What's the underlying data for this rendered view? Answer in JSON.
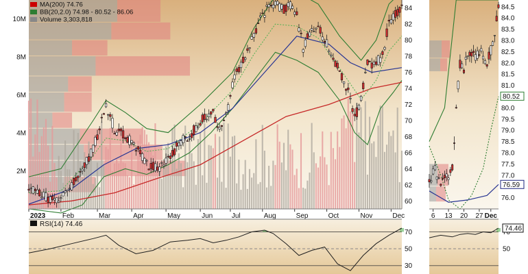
{
  "chart_data": [
    {
      "type": "candlestick",
      "panel": "main-daily",
      "legend": [
        {
          "label": "MA(200) 74.76",
          "color": "#cc0000"
        },
        {
          "label": "BB(20,2.0) 74.98 - 80.52 - 86.06",
          "color": "#2e7d32"
        },
        {
          "label": "Volume 3,303,818",
          "color": "#888888"
        }
      ],
      "price_ticks": [
        "84",
        "82",
        "80",
        "78",
        "76",
        "74",
        "72",
        "70",
        "68",
        "66",
        "64",
        "62",
        "60"
      ],
      "volume_ticks": [
        "10M",
        "8M",
        "6M",
        "4M",
        "2M"
      ],
      "x_ticks": [
        "2023",
        "Feb",
        "Mar",
        "Apr",
        "May",
        "Jun",
        "Jul",
        "Aug",
        "Sep",
        "Oct",
        "Nov",
        "Dec"
      ],
      "ylim": [
        59,
        85
      ],
      "volume_ylim": [
        0,
        11
      ],
      "price_path": [
        [
          0,
          61.8
        ],
        [
          8,
          60.5
        ],
        [
          14,
          60.0
        ],
        [
          22,
          62.5
        ],
        [
          30,
          66.5
        ],
        [
          36,
          71.8
        ],
        [
          40,
          69.0
        ],
        [
          46,
          67.8
        ],
        [
          52,
          66.0
        ],
        [
          56,
          64.5
        ],
        [
          61,
          64.0
        ],
        [
          66,
          65.5
        ],
        [
          70,
          67.0
        ],
        [
          76,
          68.5
        ],
        [
          82,
          70.5
        ],
        [
          86,
          71.0
        ],
        [
          88,
          69.0
        ],
        [
          92,
          70.5
        ],
        [
          96,
          75.5
        ],
        [
          100,
          77.5
        ],
        [
          104,
          80.0
        ],
        [
          108,
          82.5
        ],
        [
          112,
          84.2
        ],
        [
          115,
          84.8
        ],
        [
          118,
          83.8
        ],
        [
          122,
          84.5
        ],
        [
          125,
          83.0
        ],
        [
          128,
          79.0
        ],
        [
          131,
          80.8
        ],
        [
          134,
          82.0
        ],
        [
          137,
          80.5
        ],
        [
          140,
          79.0
        ],
        [
          143,
          77.0
        ],
        [
          146,
          75.5
        ],
        [
          149,
          73.8
        ],
        [
          151,
          71.2
        ],
        [
          153,
          71.0
        ],
        [
          155,
          73.0
        ],
        [
          158,
          77.0
        ],
        [
          162,
          77.2
        ],
        [
          165,
          78.0
        ],
        [
          168,
          82.5
        ],
        [
          171,
          83.2
        ],
        [
          174,
          84.0
        ]
      ],
      "ma200_path": [
        [
          0,
          59.5
        ],
        [
          20,
          60.0
        ],
        [
          40,
          61.0
        ],
        [
          60,
          62.8
        ],
        [
          80,
          64.5
        ],
        [
          100,
          67.5
        ],
        [
          120,
          70.5
        ],
        [
          140,
          72.0
        ],
        [
          160,
          74.0
        ],
        [
          174,
          74.76
        ]
      ],
      "ma50_path": [
        [
          0,
          59.6
        ],
        [
          20,
          61.5
        ],
        [
          35,
          64.5
        ],
        [
          50,
          66.5
        ],
        [
          65,
          67.0
        ],
        [
          80,
          68.5
        ],
        [
          95,
          71.5
        ],
        [
          110,
          76.0
        ],
        [
          125,
          80.5
        ],
        [
          140,
          79.5
        ],
        [
          150,
          77.2
        ],
        [
          160,
          76.0
        ],
        [
          174,
          76.59
        ]
      ],
      "bb_upper_path": [
        [
          0,
          63.0
        ],
        [
          15,
          64.0
        ],
        [
          30,
          70.0
        ],
        [
          36,
          72.5
        ],
        [
          45,
          71.0
        ],
        [
          55,
          69.0
        ],
        [
          65,
          68.5
        ],
        [
          80,
          72.0
        ],
        [
          95,
          76.0
        ],
        [
          105,
          81.5
        ],
        [
          115,
          85.5
        ],
        [
          125,
          86.0
        ],
        [
          135,
          84.5
        ],
        [
          145,
          80.5
        ],
        [
          155,
          77.5
        ],
        [
          162,
          80.0
        ],
        [
          168,
          84.5
        ],
        [
          174,
          86.06
        ]
      ],
      "bb_lower_path": [
        [
          0,
          59.0
        ],
        [
          15,
          58.5
        ],
        [
          25,
          59.5
        ],
        [
          35,
          63.0
        ],
        [
          45,
          64.0
        ],
        [
          55,
          63.3
        ],
        [
          65,
          64.5
        ],
        [
          75,
          66.0
        ],
        [
          85,
          68.5
        ],
        [
          95,
          71.5
        ],
        [
          105,
          75.0
        ],
        [
          115,
          78.5
        ],
        [
          125,
          77.5
        ],
        [
          135,
          76.0
        ],
        [
          145,
          72.5
        ],
        [
          152,
          68.5
        ],
        [
          158,
          67.0
        ],
        [
          164,
          71.5
        ],
        [
          170,
          73.5
        ],
        [
          174,
          74.98
        ]
      ],
      "volume_by_price": [
        {
          "price_from": 82.2,
          "price_to": 85.0,
          "up": 45,
          "down": 22
        },
        {
          "price_from": 80.0,
          "price_to": 82.2,
          "up": 42,
          "down": 30
        },
        {
          "price_from": 78.0,
          "price_to": 80.0,
          "up": 22,
          "down": 18
        },
        {
          "price_from": 75.5,
          "price_to": 78.0,
          "up": 34,
          "down": 48
        },
        {
          "price_from": 73.5,
          "price_to": 75.5,
          "up": 20,
          "down": 12
        },
        {
          "price_from": 71.0,
          "price_to": 73.5,
          "up": 18,
          "down": 14
        },
        {
          "price_from": 69.0,
          "price_to": 71.0,
          "up": 12,
          "down": 10
        },
        {
          "price_from": 67.0,
          "price_to": 69.0,
          "up": 26,
          "down": 32
        },
        {
          "price_from": 65.0,
          "price_to": 67.0,
          "up": 28,
          "down": 40
        },
        {
          "price_from": 63.0,
          "price_to": 65.0,
          "up": 38,
          "down": 42
        },
        {
          "price_from": 61.0,
          "price_to": 63.0,
          "up": 18,
          "down": 16
        },
        {
          "price_from": 59.0,
          "price_to": 61.0,
          "up": 8,
          "down": 8
        }
      ]
    },
    {
      "type": "line",
      "panel": "rsi-daily",
      "label": "RSI(14) 74.46",
      "ticks": [
        "70",
        "50",
        "30"
      ],
      "ylim": [
        20,
        85
      ],
      "rsi_path": [
        [
          0,
          45
        ],
        [
          10,
          50
        ],
        [
          20,
          56
        ],
        [
          30,
          62
        ],
        [
          36,
          66
        ],
        [
          42,
          54
        ],
        [
          50,
          44
        ],
        [
          58,
          48
        ],
        [
          66,
          58
        ],
        [
          74,
          60
        ],
        [
          80,
          62
        ],
        [
          86,
          57
        ],
        [
          92,
          60
        ],
        [
          98,
          64
        ],
        [
          104,
          70
        ],
        [
          110,
          72
        ],
        [
          114,
          68
        ],
        [
          120,
          56
        ],
        [
          126,
          42
        ],
        [
          132,
          48
        ],
        [
          138,
          52
        ],
        [
          144,
          32
        ],
        [
          150,
          24
        ],
        [
          156,
          42
        ],
        [
          162,
          56
        ],
        [
          168,
          66
        ],
        [
          174,
          74.46
        ]
      ]
    },
    {
      "type": "candlestick",
      "panel": "main-hourly",
      "price_ticks": [
        "84.5",
        "84.0",
        "83.5",
        "83.0",
        "82.5",
        "82.0",
        "81.5",
        "81.0",
        "80.5",
        "80.0",
        "79.5",
        "79.0",
        "78.5",
        "78.0",
        "77.5",
        "77.0",
        "76.5",
        "76.0"
      ],
      "badges": [
        {
          "label": "80.52",
          "color": "#2e7d32"
        },
        {
          "label": "76.59",
          "color": "#1a237e"
        }
      ],
      "badge_values": [
        80.52,
        76.59
      ],
      "x_ticks": [
        "6",
        "13",
        "20",
        "27",
        "Dec"
      ],
      "ylim": [
        75.5,
        84.8
      ],
      "price_path": [
        [
          0,
          76.8
        ],
        [
          3,
          77.2
        ],
        [
          6,
          76.5
        ],
        [
          9,
          76.9
        ],
        [
          12,
          77.3
        ],
        [
          14,
          80.0
        ],
        [
          16,
          82.0
        ],
        [
          18,
          81.8
        ],
        [
          20,
          82.3
        ],
        [
          22,
          82.4
        ],
        [
          24,
          82.2
        ],
        [
          26,
          82.5
        ],
        [
          28,
          82.4
        ],
        [
          30,
          82.0
        ],
        [
          32,
          82.6
        ],
        [
          34,
          83.3
        ],
        [
          36,
          84.5
        ]
      ],
      "bb_upper_path": [
        [
          0,
          78.5
        ],
        [
          8,
          80.0
        ],
        [
          14,
          84.8
        ],
        [
          20,
          84.8
        ],
        [
          36,
          84.8
        ]
      ],
      "bb_lower_path": [
        [
          0,
          78.3
        ],
        [
          6,
          77.0
        ],
        [
          10,
          75.9
        ],
        [
          16,
          75.5
        ],
        [
          22,
          76.1
        ],
        [
          28,
          77.3
        ],
        [
          32,
          79.0
        ],
        [
          36,
          80.5
        ]
      ],
      "ma50_path": [
        [
          0,
          76.3
        ],
        [
          10,
          75.8
        ],
        [
          20,
          75.9
        ],
        [
          30,
          76.1
        ],
        [
          36,
          76.59
        ]
      ]
    },
    {
      "type": "line",
      "panel": "rsi-hourly",
      "badge": "74.46",
      "ticks": [
        "70",
        "50"
      ],
      "ylim": [
        20,
        85
      ],
      "rsi_path": [
        [
          0,
          63
        ],
        [
          6,
          66
        ],
        [
          12,
          64
        ],
        [
          16,
          67
        ],
        [
          20,
          68
        ],
        [
          24,
          67
        ],
        [
          28,
          70
        ],
        [
          32,
          69
        ],
        [
          36,
          74.46
        ]
      ]
    }
  ]
}
